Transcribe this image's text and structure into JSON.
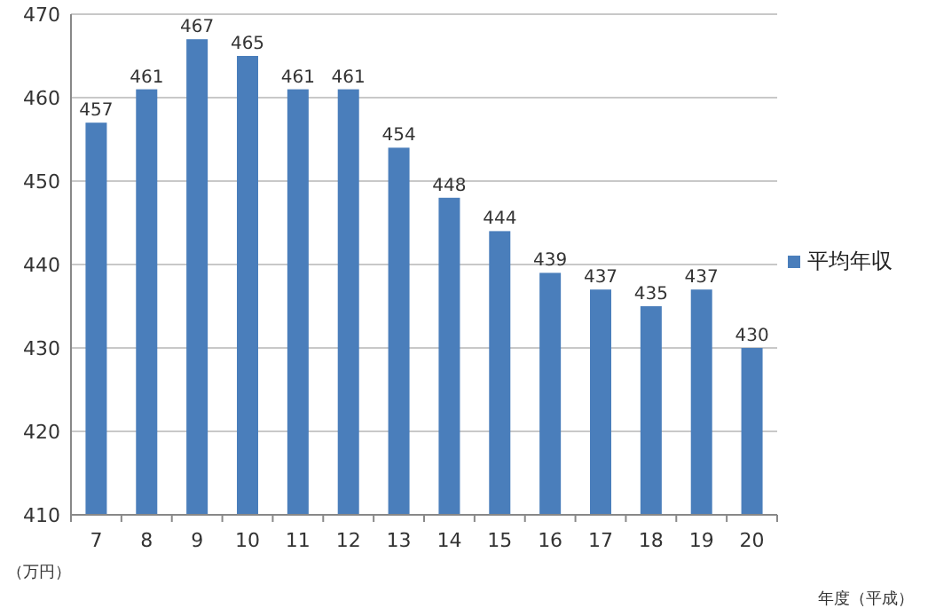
{
  "chart_data": {
    "type": "bar",
    "categories": [
      "7",
      "8",
      "9",
      "10",
      "11",
      "12",
      "13",
      "14",
      "15",
      "16",
      "17",
      "18",
      "19",
      "20"
    ],
    "series": [
      {
        "name": "平均年収",
        "color": "#4a7ebb",
        "values": [
          457,
          461,
          467,
          465,
          461,
          461,
          454,
          448,
          444,
          439,
          437,
          435,
          437,
          430
        ]
      }
    ],
    "ylim": [
      410,
      470
    ],
    "yticks": [
      410,
      420,
      430,
      440,
      450,
      460,
      470
    ],
    "grid": "y",
    "legend": "right",
    "data_labels": true,
    "ylabel": "（万円）",
    "xlabel": "年度（平成）"
  }
}
